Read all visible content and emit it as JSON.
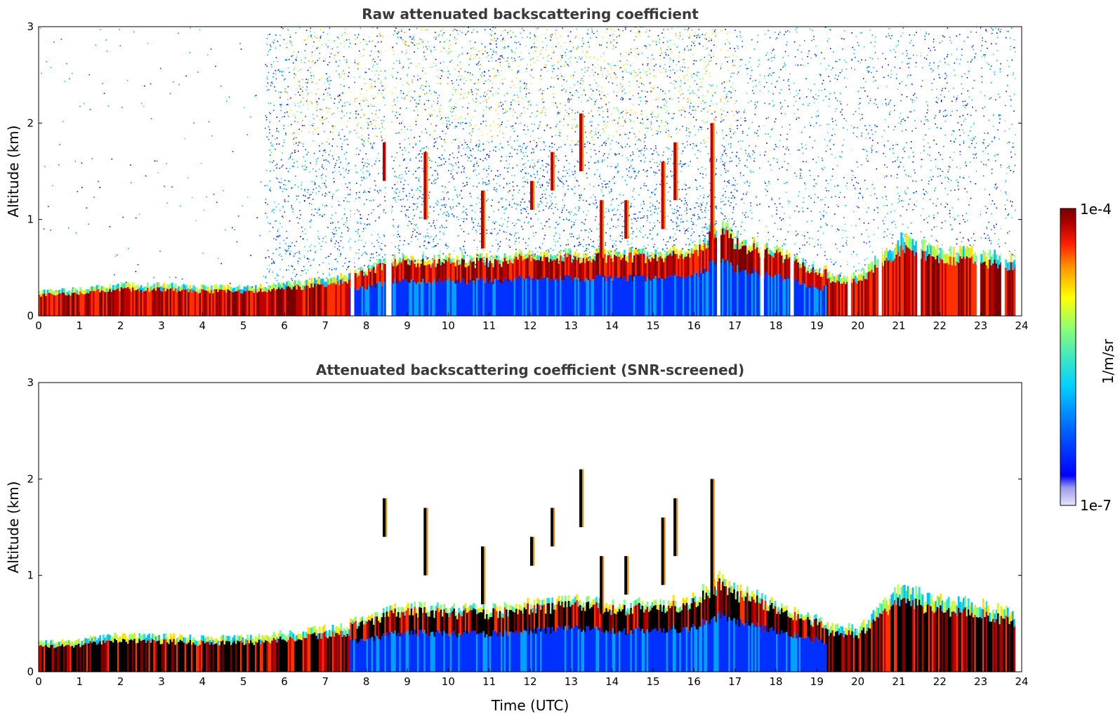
{
  "chart_data": [
    {
      "type": "heatmap",
      "title": "Raw attenuated backscattering coefficient",
      "xlabel": "",
      "ylabel": "Altitude (km)",
      "xlim": [
        0,
        24
      ],
      "ylim": [
        0,
        3
      ],
      "x_ticks": [
        "0",
        "1",
        "2",
        "3",
        "4",
        "5",
        "6",
        "7",
        "8",
        "9",
        "10",
        "11",
        "12",
        "13",
        "14",
        "15",
        "16",
        "17",
        "18",
        "19",
        "20",
        "21",
        "22",
        "23",
        "24"
      ],
      "y_ticks": [
        "0",
        "1",
        "2",
        "3"
      ],
      "boundary_layer_top_km": [
        [
          0,
          0.25
        ],
        [
          1,
          0.28
        ],
        [
          2,
          0.32
        ],
        [
          3,
          0.32
        ],
        [
          4,
          0.3
        ],
        [
          5,
          0.3
        ],
        [
          6,
          0.33
        ],
        [
          7,
          0.38
        ],
        [
          8,
          0.45
        ],
        [
          8.5,
          0.55
        ],
        [
          9,
          0.55
        ],
        [
          10,
          0.55
        ],
        [
          11,
          0.55
        ],
        [
          12,
          0.6
        ],
        [
          13,
          0.6
        ],
        [
          14,
          0.6
        ],
        [
          15,
          0.6
        ],
        [
          16,
          0.65
        ],
        [
          16.6,
          0.9
        ],
        [
          17,
          0.75
        ],
        [
          18,
          0.62
        ],
        [
          19,
          0.45
        ],
        [
          20,
          0.42
        ],
        [
          21,
          0.8
        ],
        [
          22,
          0.7
        ],
        [
          23,
          0.65
        ],
        [
          23.8,
          0.6
        ]
      ],
      "noise_level": "high above boundary layer",
      "gaps_utc": [
        7.62,
        8.48,
        8.53,
        16.56,
        17.62,
        18.35,
        19.75,
        20.5,
        21.45,
        22.9,
        23.5
      ]
    },
    {
      "type": "heatmap",
      "title": "Attenuated backscattering coefficient (SNR-screened)",
      "xlabel": "Time (UTC)",
      "ylabel": "Altitude (km)",
      "xlim": [
        0,
        24
      ],
      "ylim": [
        0,
        3
      ],
      "x_ticks": [
        "0",
        "1",
        "2",
        "3",
        "4",
        "5",
        "6",
        "7",
        "8",
        "9",
        "10",
        "11",
        "12",
        "13",
        "14",
        "15",
        "16",
        "17",
        "18",
        "19",
        "20",
        "21",
        "22",
        "23",
        "24"
      ],
      "y_ticks": [
        "0",
        "1",
        "2",
        "3"
      ],
      "boundary_layer_top_km": [
        [
          0,
          0.3
        ],
        [
          1,
          0.33
        ],
        [
          2,
          0.38
        ],
        [
          3,
          0.37
        ],
        [
          4,
          0.35
        ],
        [
          5,
          0.35
        ],
        [
          6,
          0.4
        ],
        [
          7,
          0.45
        ],
        [
          8,
          0.5
        ],
        [
          8.5,
          0.6
        ],
        [
          9,
          0.62
        ],
        [
          10,
          0.6
        ],
        [
          11,
          0.6
        ],
        [
          12,
          0.65
        ],
        [
          13,
          0.68
        ],
        [
          14,
          0.65
        ],
        [
          15,
          0.65
        ],
        [
          16,
          0.7
        ],
        [
          16.6,
          0.9
        ],
        [
          17,
          0.8
        ],
        [
          18,
          0.65
        ],
        [
          19,
          0.5
        ],
        [
          20,
          0.45
        ],
        [
          21,
          0.85
        ],
        [
          22,
          0.75
        ],
        [
          23,
          0.7
        ],
        [
          23.8,
          0.6
        ]
      ],
      "noise_level": "screened"
    }
  ],
  "colorbar": {
    "label": "1/m/sr",
    "max_label": "1e-4",
    "min_label": "1e-7",
    "colors": [
      "#dcdcf5",
      "#0000ff",
      "#0050ff",
      "#00c8ff",
      "#40e0c0",
      "#80ff80",
      "#ffff00",
      "#ffa000",
      "#ff2000",
      "#b00000",
      "#7a0000"
    ]
  }
}
